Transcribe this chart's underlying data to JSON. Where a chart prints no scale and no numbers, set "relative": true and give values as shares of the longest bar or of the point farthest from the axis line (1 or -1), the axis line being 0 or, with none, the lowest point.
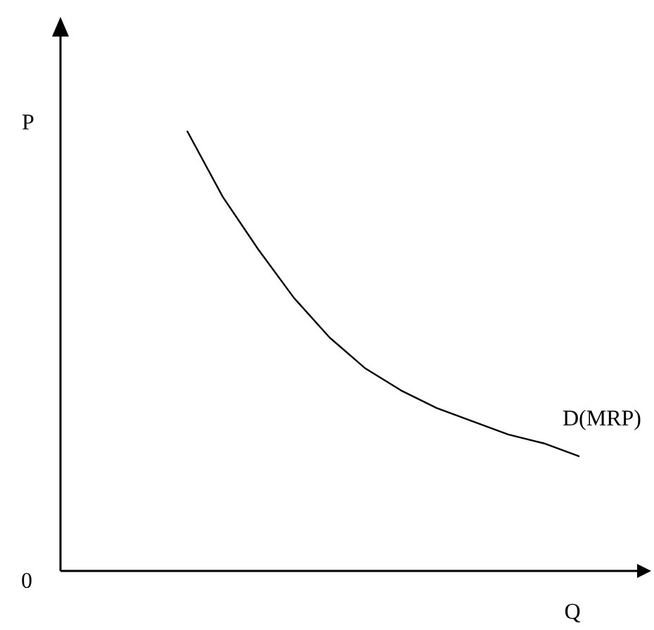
{
  "chart_data": {
    "type": "line",
    "xlabel": "Q",
    "relative": true,
    "legend": false,
    "annotations": [
      "P",
      "0"
    ],
    "categories": [
      null,
      null,
      null,
      null,
      null,
      null,
      null,
      null,
      null,
      null,
      null,
      null
    ],
    "series": [
      {
        "name": "D(MRP)",
        "color": "#000000",
        "values": [
          1,
          0.85,
          0.73,
          0.62,
          0.53,
          0.46,
          0.41,
          0.37,
          0.34,
          0.31,
          0.29,
          0.26
        ]
      }
    ]
  }
}
